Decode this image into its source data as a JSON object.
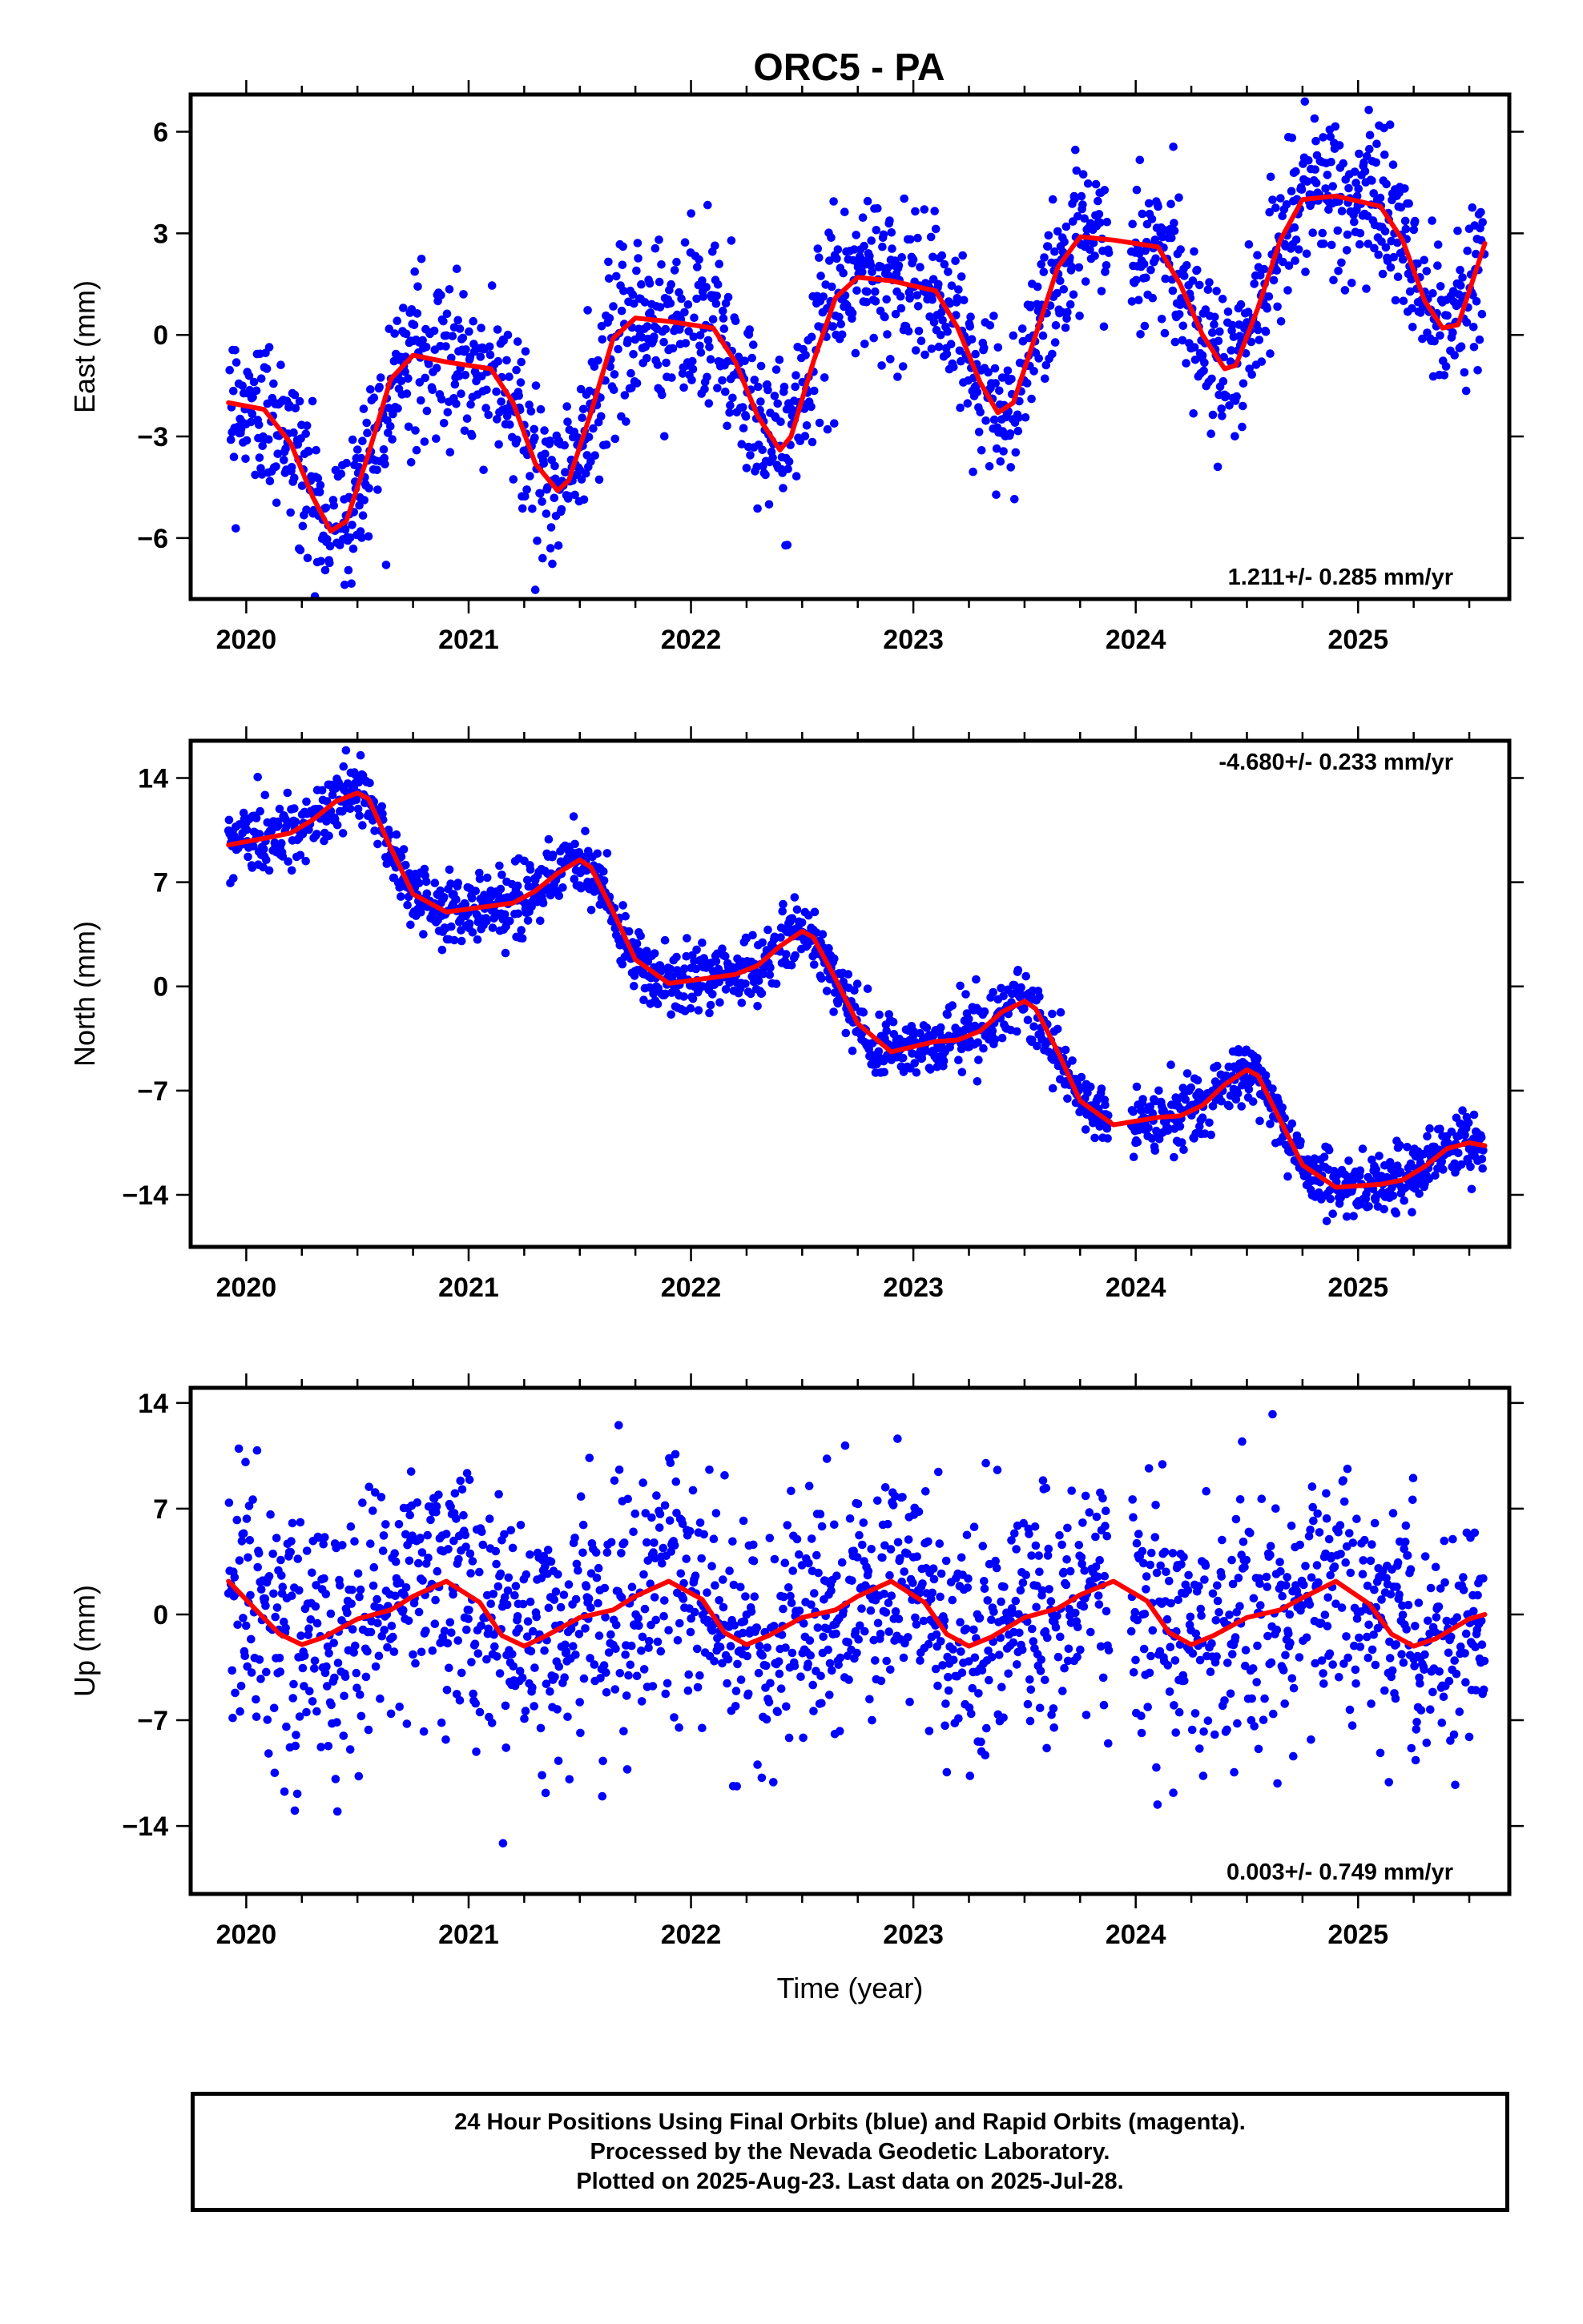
{
  "title": "ORC5 - PA",
  "colors": {
    "final_orbits": "#0000ff",
    "fit_line": "#ff0000",
    "frame": "#000000"
  },
  "footer": {
    "line1": "24 Hour Positions Using Final Orbits (blue) and Rapid Orbits (magenta).",
    "line2": "Processed by the Nevada Geodetic Laboratory.",
    "line3": "Plotted on 2025-Aug-23. Last data on 2025-Jul-28."
  },
  "chart_data": [
    {
      "type": "scatter",
      "component": "east",
      "ylabel": "East (mm)",
      "xlabel": "",
      "xlim": [
        2019.75,
        2025.68
      ],
      "ylim": [
        -7.8,
        7.1
      ],
      "xticks": [
        2020,
        2021,
        2022,
        2023,
        2024,
        2025
      ],
      "yticks": [
        -6,
        -3,
        0,
        3,
        6
      ],
      "yticklabels": [
        "−6",
        "−3",
        "0",
        "3",
        "6"
      ],
      "rate_label": "1.211+/- 0.285 mm/yr",
      "rate_position": "bottom-right",
      "data_range": [
        2019.92,
        2025.57
      ],
      "noise_mm": 1.2,
      "fit": {
        "x": [
          2019.92,
          2020.08,
          2020.2,
          2020.3,
          2020.38,
          2020.45,
          2020.55,
          2020.65,
          2020.75,
          2020.9,
          2021.1,
          2021.2,
          2021.3,
          2021.4,
          2021.45,
          2021.55,
          2021.65,
          2021.75,
          2021.9,
          2022.1,
          2022.2,
          2022.3,
          2022.4,
          2022.45,
          2022.55,
          2022.65,
          2022.75,
          2022.9,
          2023.1,
          2023.2,
          2023.3,
          2023.38,
          2023.45,
          2023.55,
          2023.65,
          2023.75,
          2023.9,
          2024.1,
          2024.2,
          2024.3,
          2024.4,
          2024.45,
          2024.55,
          2024.65,
          2024.75,
          2024.9,
          2025.1,
          2025.2,
          2025.3,
          2025.38,
          2025.45,
          2025.57
        ],
        "y": [
          -2.0,
          -2.2,
          -3.2,
          -4.8,
          -5.8,
          -5.5,
          -3.5,
          -1.3,
          -0.6,
          -0.8,
          -1.0,
          -2.0,
          -3.8,
          -4.6,
          -4.3,
          -2.3,
          -0.1,
          0.5,
          0.4,
          0.2,
          -0.8,
          -2.4,
          -3.4,
          -3.0,
          -0.8,
          1.1,
          1.7,
          1.6,
          1.3,
          0.2,
          -1.4,
          -2.3,
          -2.0,
          0.0,
          2.0,
          2.9,
          2.8,
          2.6,
          1.5,
          0.0,
          -1.0,
          -0.9,
          0.8,
          2.8,
          4.0,
          4.1,
          3.8,
          2.8,
          1.0,
          0.2,
          0.3,
          2.7
        ]
      }
    },
    {
      "type": "scatter",
      "component": "north",
      "ylabel": "North (mm)",
      "xlabel": "",
      "xlim": [
        2019.75,
        2025.68
      ],
      "ylim": [
        -17.5,
        16.5
      ],
      "xticks": [
        2020,
        2021,
        2022,
        2023,
        2024,
        2025
      ],
      "yticks": [
        -14,
        -7,
        0,
        7,
        14
      ],
      "yticklabels": [
        "−14",
        "−7",
        "0",
        "7",
        "14"
      ],
      "rate_label": "-4.680+/- 0.233 mm/yr",
      "rate_position": "top-right",
      "data_range": [
        2019.92,
        2025.57
      ],
      "noise_mm": 1.1,
      "fit": {
        "x": [
          2019.92,
          2020.1,
          2020.2,
          2020.3,
          2020.4,
          2020.5,
          2020.55,
          2020.65,
          2020.75,
          2020.9,
          2021.1,
          2021.2,
          2021.3,
          2021.4,
          2021.5,
          2021.55,
          2021.65,
          2021.75,
          2021.9,
          2022.1,
          2022.2,
          2022.3,
          2022.4,
          2022.5,
          2022.55,
          2022.65,
          2022.75,
          2022.9,
          2023.1,
          2023.2,
          2023.3,
          2023.4,
          2023.5,
          2023.55,
          2023.65,
          2023.75,
          2023.9,
          2024.1,
          2024.2,
          2024.3,
          2024.4,
          2024.5,
          2024.55,
          2024.65,
          2024.75,
          2024.9,
          2025.1,
          2025.2,
          2025.3,
          2025.4,
          2025.5,
          2025.57
        ],
        "y": [
          9.5,
          10.0,
          10.3,
          11.2,
          12.4,
          13.0,
          12.6,
          9.3,
          6.2,
          5.0,
          5.4,
          5.6,
          6.4,
          7.6,
          8.5,
          8.0,
          5.0,
          1.8,
          0.2,
          0.6,
          0.8,
          1.4,
          2.7,
          3.7,
          3.3,
          0.5,
          -2.5,
          -4.4,
          -3.7,
          -3.6,
          -3.0,
          -1.7,
          -1.0,
          -1.5,
          -4.4,
          -7.7,
          -9.3,
          -8.8,
          -8.7,
          -8.0,
          -6.6,
          -5.6,
          -6.0,
          -9.0,
          -12.0,
          -13.5,
          -13.3,
          -13.0,
          -12.1,
          -10.9,
          -10.5,
          -10.7
        ]
      }
    },
    {
      "type": "scatter",
      "component": "up",
      "ylabel": "Up (mm)",
      "xlabel": "Time (year)",
      "xlim": [
        2019.75,
        2025.68
      ],
      "ylim": [
        -18.5,
        15.0
      ],
      "xticks": [
        2020,
        2021,
        2022,
        2023,
        2024,
        2025
      ],
      "yticks": [
        -14,
        -7,
        0,
        7,
        14
      ],
      "yticklabels": [
        "−14",
        "−7",
        "0",
        "7",
        "14"
      ],
      "rate_label": "0.003+/- 0.749 mm/yr",
      "rate_position": "bottom-right",
      "data_range": [
        2019.92,
        2025.57
      ],
      "noise_mm": 4.0,
      "fit": {
        "x": [
          2019.92,
          2020.05,
          2020.15,
          2020.25,
          2020.35,
          2020.5,
          2020.65,
          2020.75,
          2020.9,
          2021.05,
          2021.15,
          2021.25,
          2021.35,
          2021.5,
          2021.65,
          2021.75,
          2021.9,
          2022.05,
          2022.15,
          2022.25,
          2022.35,
          2022.5,
          2022.65,
          2022.75,
          2022.9,
          2023.05,
          2023.15,
          2023.25,
          2023.35,
          2023.5,
          2023.65,
          2023.75,
          2023.9,
          2024.05,
          2024.15,
          2024.25,
          2024.35,
          2024.5,
          2024.65,
          2024.75,
          2024.9,
          2025.05,
          2025.15,
          2025.25,
          2025.35,
          2025.5,
          2025.57
        ],
        "y": [
          2.2,
          0.2,
          -1.3,
          -2.0,
          -1.5,
          -0.3,
          0.3,
          1.2,
          2.2,
          0.8,
          -1.4,
          -2.1,
          -1.4,
          -0.2,
          0.3,
          1.2,
          2.2,
          1.0,
          -1.2,
          -2.0,
          -1.4,
          -0.2,
          0.3,
          1.2,
          2.2,
          0.8,
          -1.3,
          -2.1,
          -1.5,
          -0.2,
          0.4,
          1.3,
          2.2,
          0.9,
          -1.2,
          -2.0,
          -1.4,
          -0.2,
          0.3,
          1.1,
          2.2,
          0.7,
          -1.3,
          -2.1,
          -1.6,
          -0.3,
          0.0
        ]
      }
    }
  ]
}
